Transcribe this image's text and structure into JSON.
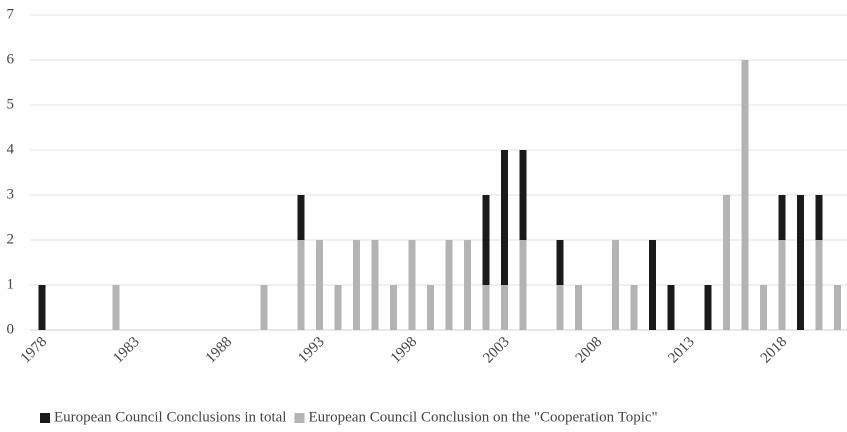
{
  "chart_data": {
    "type": "stacked_bar",
    "categories": [
      "1978",
      null,
      null,
      null,
      null,
      "1983",
      null,
      null,
      null,
      null,
      "1988",
      null,
      null,
      null,
      null,
      "1993",
      null,
      null,
      null,
      null,
      "1998",
      null,
      null,
      null,
      null,
      "2003",
      null,
      null,
      null,
      null,
      "2008",
      null,
      null,
      null,
      null,
      "2013",
      null,
      null,
      null,
      null,
      "2018",
      null,
      null,
      null
    ],
    "series": [
      {
        "name": "European Council Conclusion on the \"Cooperation Topic\"",
        "color": "#b4b4b4",
        "values": [
          0,
          0,
          0,
          0,
          1,
          0,
          0,
          0,
          0,
          0,
          0,
          0,
          1,
          0,
          2,
          2,
          1,
          2,
          2,
          1,
          2,
          1,
          2,
          2,
          1,
          1,
          2,
          0,
          1,
          1,
          0,
          2,
          1,
          0,
          0,
          0,
          0,
          3,
          6,
          1,
          2,
          0,
          2,
          1
        ]
      },
      {
        "name": "European Council Conclusions in total",
        "color": "#1a1a1a",
        "values": [
          1,
          0,
          0,
          0,
          0,
          0,
          0,
          0,
          0,
          0,
          0,
          0,
          0,
          0,
          1,
          0,
          0,
          0,
          0,
          0,
          0,
          0,
          0,
          0,
          2,
          3,
          2,
          0,
          1,
          0,
          0,
          0,
          0,
          2,
          1,
          0,
          1,
          0,
          0,
          0,
          1,
          3,
          1,
          0
        ]
      }
    ],
    "ylim": [
      0,
      7
    ],
    "yticks": [
      0,
      1,
      2,
      3,
      4,
      5,
      6,
      7
    ],
    "grid": true,
    "legend_order": [
      1,
      0
    ]
  }
}
